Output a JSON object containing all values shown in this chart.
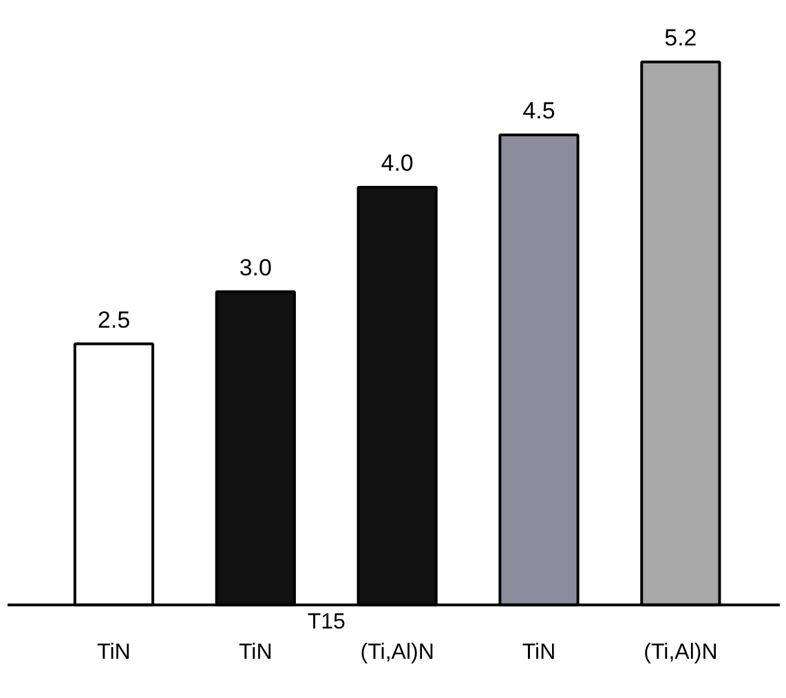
{
  "chart_data": {
    "type": "bar",
    "categories": [
      "TiN",
      "TiN",
      "(Ti,Al)N",
      "TiN",
      "(Ti,Al)N"
    ],
    "values": [
      2.5,
      3.0,
      4.0,
      4.5,
      5.2
    ],
    "colors": [
      "#ffffff",
      "#111111",
      "#111111",
      "#8c8c9c",
      "#a8a8a8"
    ],
    "value_labels": [
      "2.5",
      "3.0",
      "4.0",
      "4.5",
      "5.2"
    ],
    "annotations": [
      "T15"
    ],
    "grid": false
  }
}
